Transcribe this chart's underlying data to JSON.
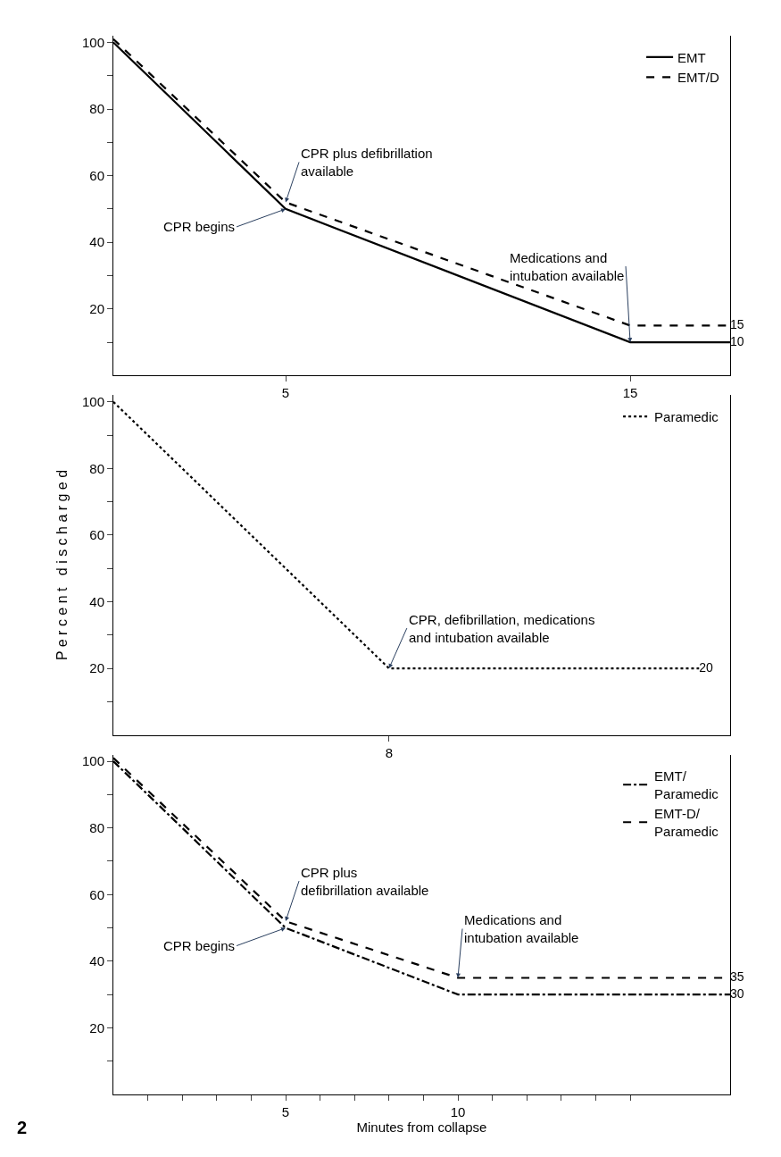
{
  "chart_data": [
    {
      "type": "line",
      "xlim": [
        0,
        17.9
      ],
      "xticks": [
        {
          "value": 5,
          "label": "5"
        },
        {
          "value": 15,
          "label": "15"
        }
      ],
      "ylim": [
        0,
        102
      ],
      "yticks": [
        {
          "value": 10,
          "label": null
        },
        20,
        {
          "value": 30,
          "label": null
        },
        40,
        {
          "value": 50,
          "label": null
        },
        60,
        {
          "value": 70,
          "label": null
        },
        80,
        {
          "value": 90,
          "label": null
        },
        100
      ],
      "grid": false,
      "legend": "top right",
      "marker": "none",
      "series": [
        {
          "name": "EMT",
          "color": "#000000",
          "line_style": "solid",
          "x": [
            0,
            5,
            15,
            17.9
          ],
          "values": [
            100,
            50,
            10,
            10
          ],
          "value_labels": [
            null,
            null,
            null,
            "10"
          ]
        },
        {
          "name": "EMT/D",
          "color": "#000000",
          "line_style": "dashed",
          "x": [
            0,
            5,
            15,
            17.9
          ],
          "values": [
            101,
            52,
            15,
            15
          ],
          "value_labels": [
            null,
            null,
            null,
            "15"
          ]
        }
      ],
      "annotations": [
        {
          "text": "CPR plus defibrillation\navailable",
          "x": 5,
          "y": 52
        },
        {
          "text": "CPR begins",
          "x": 5,
          "y": 50
        },
        {
          "text": "Medications and\nintubation available",
          "x": 15,
          "y": 10
        }
      ]
    },
    {
      "type": "line",
      "categories": [
        null,
        null,
        null,
        null,
        null,
        null,
        null,
        null,
        "8",
        null,
        null,
        null,
        null,
        null,
        null,
        null,
        null,
        null
      ],
      "ylim": [
        0,
        102
      ],
      "yticks": [
        {
          "value": 10,
          "label": null
        },
        20,
        {
          "value": 30,
          "label": null
        },
        40,
        {
          "value": 50,
          "label": null
        },
        60,
        {
          "value": 70,
          "label": null
        },
        80,
        {
          "value": 90,
          "label": null
        },
        100
      ],
      "ylabel": "P e r c e n t   d i s c h a r g e d",
      "grid": false,
      "legend": "top right",
      "marker": "none",
      "series": [
        {
          "name": "Paramedic",
          "color": "#000000",
          "line_style": "dotted",
          "values": [
            100,
            90,
            80,
            70,
            60,
            50,
            40,
            30,
            20,
            20,
            20,
            20,
            20,
            20,
            20,
            20,
            20,
            20
          ],
          "value_labels": [
            null,
            null,
            null,
            null,
            null,
            null,
            null,
            null,
            null,
            null,
            null,
            null,
            null,
            null,
            null,
            null,
            null,
            "20"
          ]
        }
      ],
      "annotations": [
        {
          "text": "CPR, defibrillation, medications\nand intubation available",
          "x": "8",
          "y": 20
        }
      ]
    },
    {
      "type": "line",
      "xlim": [
        0,
        17.9
      ],
      "xticks": [
        {
          "value": 1,
          "label": null
        },
        {
          "value": 2,
          "label": null
        },
        {
          "value": 3,
          "label": null
        },
        {
          "value": 4,
          "label": null
        },
        5,
        {
          "value": 6,
          "label": null
        },
        {
          "value": 7,
          "label": null
        },
        {
          "value": 8,
          "label": null
        },
        {
          "value": 9,
          "label": null
        },
        10,
        {
          "value": 11,
          "label": null
        },
        {
          "value": 12,
          "label": null
        },
        {
          "value": 13,
          "label": null
        },
        {
          "value": 14,
          "label": null
        },
        {
          "value": 15,
          "label": null
        }
      ],
      "ylim": [
        0,
        102
      ],
      "yticks": [
        {
          "value": 10,
          "label": null
        },
        20,
        {
          "value": 30,
          "label": null
        },
        40,
        {
          "value": 50,
          "label": null
        },
        60,
        {
          "value": 70,
          "label": null
        },
        80,
        {
          "value": 90,
          "label": null
        },
        100
      ],
      "xlabel": "Minutes from collapse",
      "grid": false,
      "legend": "top right",
      "marker": "none",
      "series": [
        {
          "name": "EMT/\nParamedic",
          "color": "#000000",
          "line_style": "dashdot",
          "x": [
            0,
            5,
            10,
            17.9
          ],
          "values": [
            100,
            50,
            30,
            30
          ],
          "value_labels": [
            null,
            null,
            null,
            "30"
          ]
        },
        {
          "name": "EMT-D/\nParamedic",
          "color": "#000000",
          "line_style": "dashed",
          "x": [
            0,
            5,
            10,
            17.9
          ],
          "values": [
            101,
            52,
            35,
            35
          ],
          "value_labels": [
            null,
            null,
            null,
            "35"
          ]
        }
      ],
      "annotations": [
        {
          "text": "CPR plus\ndefibrillation available",
          "x": 5,
          "y": 52
        },
        {
          "text": "CPR begins",
          "x": 5,
          "y": 50
        },
        {
          "text": "Medications and\nintubation available",
          "x": 10,
          "y": 35
        },
        "2"
      ]
    }
  ]
}
